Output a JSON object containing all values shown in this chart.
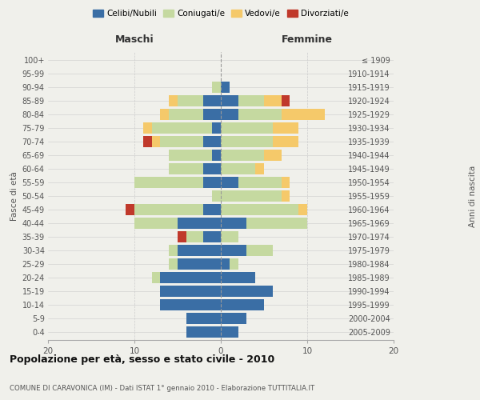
{
  "age_groups": [
    "0-4",
    "5-9",
    "10-14",
    "15-19",
    "20-24",
    "25-29",
    "30-34",
    "35-39",
    "40-44",
    "45-49",
    "50-54",
    "55-59",
    "60-64",
    "65-69",
    "70-74",
    "75-79",
    "80-84",
    "85-89",
    "90-94",
    "95-99",
    "100+"
  ],
  "birth_years": [
    "2005-2009",
    "2000-2004",
    "1995-1999",
    "1990-1994",
    "1985-1989",
    "1980-1984",
    "1975-1979",
    "1970-1974",
    "1965-1969",
    "1960-1964",
    "1955-1959",
    "1950-1954",
    "1945-1949",
    "1940-1944",
    "1935-1939",
    "1930-1934",
    "1925-1929",
    "1920-1924",
    "1915-1919",
    "1910-1914",
    "≤ 1909"
  ],
  "male": {
    "celibi": [
      4,
      4,
      7,
      7,
      7,
      5,
      5,
      2,
      5,
      2,
      0,
      2,
      2,
      1,
      2,
      1,
      2,
      2,
      0,
      0,
      0
    ],
    "coniugati": [
      0,
      0,
      0,
      0,
      1,
      1,
      1,
      2,
      5,
      8,
      1,
      8,
      4,
      5,
      5,
      7,
      4,
      3,
      1,
      0,
      0
    ],
    "vedovi": [
      0,
      0,
      0,
      0,
      0,
      0,
      0,
      0,
      0,
      0,
      0,
      0,
      0,
      0,
      1,
      1,
      1,
      1,
      0,
      0,
      0
    ],
    "divorziati": [
      0,
      0,
      0,
      0,
      0,
      0,
      0,
      1,
      0,
      1,
      0,
      0,
      0,
      0,
      1,
      0,
      0,
      0,
      0,
      0,
      0
    ]
  },
  "female": {
    "nubili": [
      2,
      3,
      5,
      6,
      4,
      1,
      3,
      0,
      3,
      0,
      0,
      2,
      0,
      0,
      0,
      0,
      2,
      2,
      1,
      0,
      0
    ],
    "coniugate": [
      0,
      0,
      0,
      0,
      0,
      1,
      3,
      2,
      7,
      9,
      7,
      5,
      4,
      5,
      6,
      6,
      5,
      3,
      0,
      0,
      0
    ],
    "vedove": [
      0,
      0,
      0,
      0,
      0,
      0,
      0,
      0,
      0,
      1,
      1,
      1,
      1,
      2,
      3,
      3,
      5,
      2,
      0,
      0,
      0
    ],
    "divorziate": [
      0,
      0,
      0,
      0,
      0,
      0,
      0,
      0,
      0,
      0,
      0,
      0,
      0,
      0,
      0,
      0,
      0,
      1,
      0,
      0,
      0
    ]
  },
  "colors": {
    "celibi_nubili": "#3a6ea5",
    "coniugati": "#c5d9a0",
    "vedovi": "#f5c96a",
    "divorziati": "#c0392b"
  },
  "xlim": 20,
  "title": "Popolazione per età, sesso e stato civile - 2010",
  "subtitle": "COMUNE DI CARAVONICA (IM) - Dati ISTAT 1° gennaio 2010 - Elaborazione TUTTITALIA.IT",
  "ylabel_left": "Fasce di età",
  "ylabel_right": "Anni di nascita",
  "xlabel_left": "Maschi",
  "xlabel_right": "Femmine",
  "bg_color": "#f0f0eb",
  "bar_height": 0.82
}
